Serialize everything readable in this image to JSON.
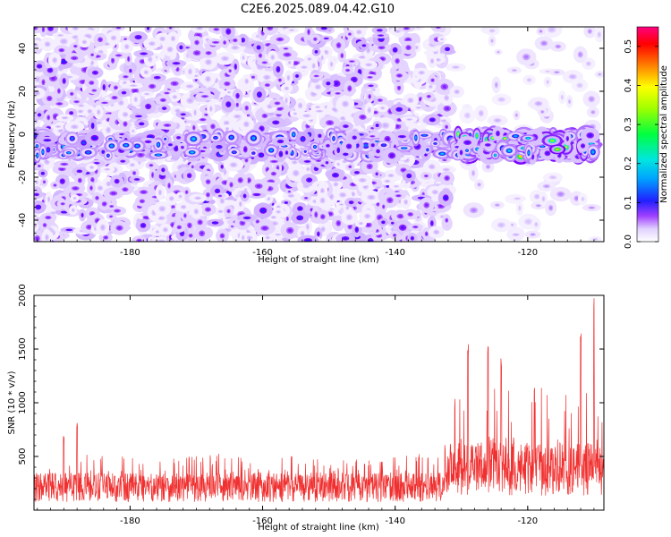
{
  "title": "C2E6.2025.089.04.42.G10",
  "chart_data": [
    {
      "type": "heatmap",
      "title": "C2E6.2025.089.04.42.G10",
      "xlabel": "Height of straight line (km)",
      "ylabel": "Frequency (Hz)",
      "xlim": [
        -194.5,
        -108.5
      ],
      "ylim": [
        -50,
        50
      ],
      "x_ticks": [
        -180,
        -160,
        -140,
        -120
      ],
      "x_tick_labels": [
        "-180",
        "-160",
        "-140",
        "-120"
      ],
      "y_ticks": [
        -40,
        -20,
        0,
        20,
        40
      ],
      "y_tick_labels": [
        "-40",
        "-20",
        "0",
        "20",
        "40"
      ],
      "colorbar": {
        "label": "Normalized spectral amplitude",
        "range": [
          0.0,
          0.55
        ],
        "ticks": [
          0.0,
          0.1,
          0.2,
          0.3,
          0.4,
          0.5
        ],
        "tick_labels": [
          "0.0",
          "0.1",
          "0.2",
          "0.3",
          "0.4",
          "0.5"
        ],
        "colors": [
          "#ffffff",
          "#d6c8ff",
          "#8000ff",
          "#2020ff",
          "#00e5ff",
          "#00ff40",
          "#ffff00",
          "#ff8000",
          "#ff0000",
          "#ff0080"
        ]
      },
      "description_values": {
        "band_center_hz": -5,
        "band_width_hz": 10,
        "noise_extent_x": [
          -194.5,
          -132
        ],
        "signal_extent_x": [
          -131,
          -110
        ],
        "peak_amplitude": 0.5
      }
    },
    {
      "type": "line",
      "xlabel": "Height of straight line (km)",
      "ylabel": "SNR (10 * v/v)",
      "xlim": [
        -194.5,
        -108.5
      ],
      "ylim": [
        0,
        2000
      ],
      "x_ticks": [
        -180,
        -160,
        -140,
        -120
      ],
      "x_tick_labels": [
        "-180",
        "-160",
        "-140",
        "-120"
      ],
      "y_ticks": [
        500,
        1000,
        1500,
        2000
      ],
      "y_tick_labels": [
        "500",
        "1000",
        "1500",
        "2000"
      ],
      "color": "#f03030",
      "series_summary": [
        {
          "x_range": [
            -194.5,
            -132.5
          ],
          "baseline": 250,
          "typical_peak": 500
        },
        {
          "x_range": [
            -132.5,
            -108.5
          ],
          "baseline": 450,
          "typical_peak": 1200
        }
      ],
      "notable_peaks": [
        {
          "x": -188,
          "y": 820
        },
        {
          "x": -190,
          "y": 700
        },
        {
          "x": -131,
          "y": 1050
        },
        {
          "x": -129,
          "y": 1600
        },
        {
          "x": -126,
          "y": 1550
        },
        {
          "x": -124,
          "y": 1450
        },
        {
          "x": -119,
          "y": 1180
        },
        {
          "x": -112,
          "y": 1700
        },
        {
          "x": -110,
          "y": 2000
        }
      ]
    }
  ]
}
